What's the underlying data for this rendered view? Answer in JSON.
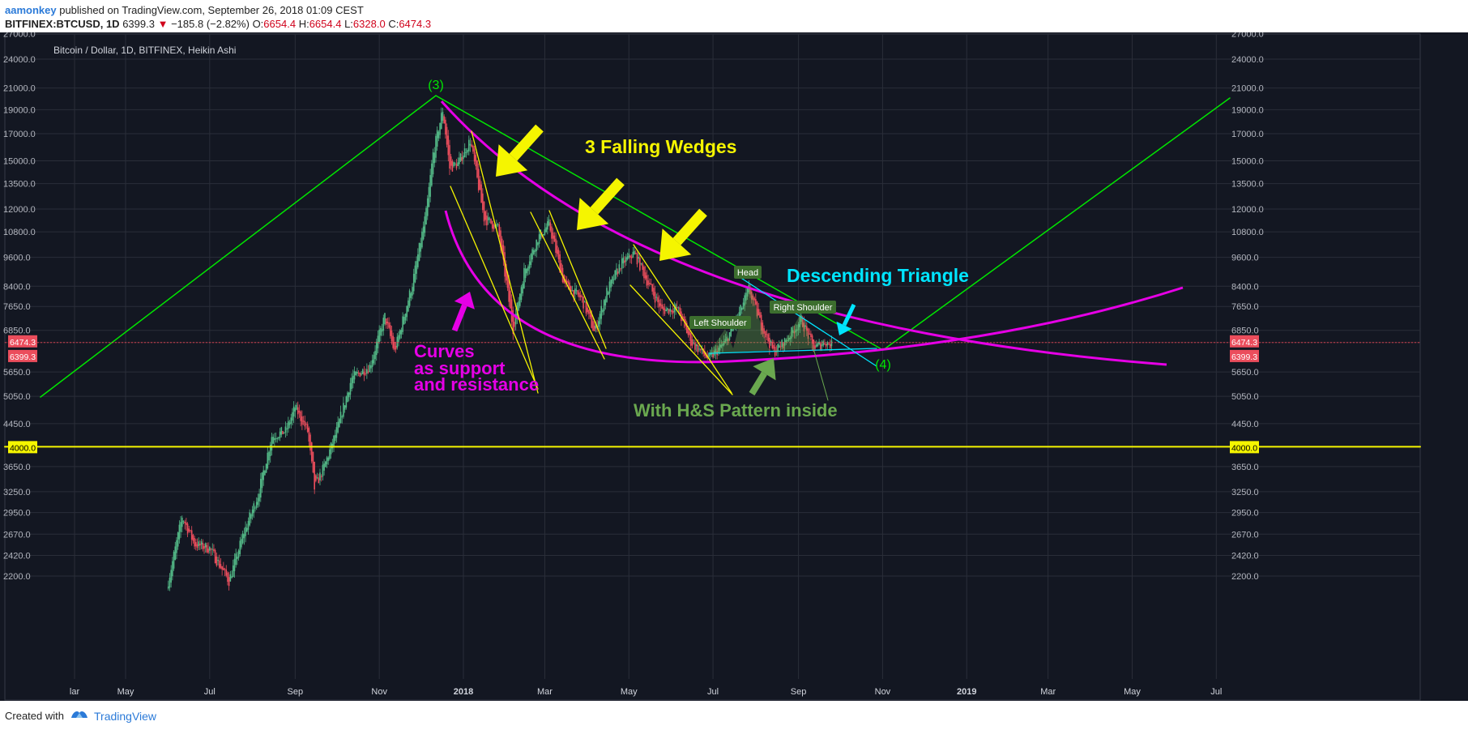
{
  "header": {
    "author": "aamonkey",
    "published_text": "published on TradingView.com, September 26, 2018 01:09 CEST",
    "symbol": "BITFINEX:BTCUSD, 1D",
    "price": "6399.3",
    "change": "−185.8 (−2.82%)",
    "o_label": "O:",
    "o_value": "6654.4",
    "h_label": "H:",
    "h_value": "6654.4",
    "l_label": "L:",
    "l_value": "6328.0",
    "c_label": "C:",
    "c_value": "6474.3"
  },
  "footer": {
    "created_with": "Created with",
    "brand": "TradingView"
  },
  "colors": {
    "background": "#131722",
    "grid": "#2a2e39",
    "up_candle": "#53b987",
    "down_candle": "#eb4d5c",
    "green_line": "#00e600",
    "magenta": "#e600e6",
    "yellow": "#f5f500",
    "cyan": "#00e5ff",
    "olive": "#6aa84f"
  },
  "chart_data": {
    "type": "candlestick",
    "title": "Bitcoin / Dollar, 1D, BITFINEX, Heikin Ashi",
    "y_scale": "log",
    "ylim": [
      2100,
      27500
    ],
    "y_ticks": [
      "27000.0",
      "24000.0",
      "21000.0",
      "19000.0",
      "17000.0",
      "15000.0",
      "13500.0",
      "12000.0",
      "10800.0",
      "9600.0",
      "8400.0",
      "7650.0",
      "6850.0",
      "5650.0",
      "5050.0",
      "4450.0",
      "3650.0",
      "3250.0",
      "2950.0",
      "2670.0",
      "2420.0",
      "2200.0"
    ],
    "x_range": [
      "2017-03-24",
      "2019-07-20"
    ],
    "x_ticks": [
      {
        "label": "lar",
        "date": "2017-03-25"
      },
      {
        "label": "May",
        "date": "2017-05-01"
      },
      {
        "label": "Jul",
        "date": "2017-07-01"
      },
      {
        "label": "Sep",
        "date": "2017-09-01"
      },
      {
        "label": "Nov",
        "date": "2017-11-01"
      },
      {
        "label": "2018",
        "date": "2018-01-01"
      },
      {
        "label": "Mar",
        "date": "2018-03-01"
      },
      {
        "label": "May",
        "date": "2018-05-01"
      },
      {
        "label": "Jul",
        "date": "2018-07-01"
      },
      {
        "label": "Sep",
        "date": "2018-09-01"
      },
      {
        "label": "Nov",
        "date": "2018-11-01"
      },
      {
        "label": "2019",
        "date": "2019-01-01"
      },
      {
        "label": "Mar",
        "date": "2019-03-01"
      },
      {
        "label": "May",
        "date": "2019-05-01"
      },
      {
        "label": "Jul",
        "date": "2019-07-01"
      }
    ],
    "price_path": [
      [
        "2017-06-01",
        2150
      ],
      [
        "2017-06-11",
        2900
      ],
      [
        "2017-06-20",
        2550
      ],
      [
        "2017-07-01",
        2500
      ],
      [
        "2017-07-15",
        2150
      ],
      [
        "2017-07-25",
        2650
      ],
      [
        "2017-08-05",
        3200
      ],
      [
        "2017-08-15",
        4200
      ],
      [
        "2017-08-25",
        4300
      ],
      [
        "2017-09-01",
        4800
      ],
      [
        "2017-09-10",
        4300
      ],
      [
        "2017-09-15",
        3300
      ],
      [
        "2017-09-22",
        3650
      ],
      [
        "2017-10-01",
        4300
      ],
      [
        "2017-10-12",
        5500
      ],
      [
        "2017-10-25",
        5800
      ],
      [
        "2017-11-05",
        7300
      ],
      [
        "2017-11-12",
        6200
      ],
      [
        "2017-11-25",
        8500
      ],
      [
        "2017-12-05",
        11800
      ],
      [
        "2017-12-10",
        15500
      ],
      [
        "2017-12-17",
        19000
      ],
      [
        "2017-12-22",
        14500
      ],
      [
        "2017-12-28",
        14800
      ],
      [
        "2018-01-06",
        16500
      ],
      [
        "2018-01-16",
        11500
      ],
      [
        "2018-01-26",
        11000
      ],
      [
        "2018-02-06",
        6900
      ],
      [
        "2018-02-14",
        9000
      ],
      [
        "2018-02-24",
        10500
      ],
      [
        "2018-03-04",
        11200
      ],
      [
        "2018-03-15",
        8500
      ],
      [
        "2018-03-28",
        7900
      ],
      [
        "2018-04-06",
        6800
      ],
      [
        "2018-04-15",
        8200
      ],
      [
        "2018-04-25",
        9300
      ],
      [
        "2018-05-05",
        9800
      ],
      [
        "2018-05-15",
        8500
      ],
      [
        "2018-05-25",
        7500
      ],
      [
        "2018-06-05",
        7600
      ],
      [
        "2018-06-15",
        6500
      ],
      [
        "2018-06-28",
        6000
      ],
      [
        "2018-07-10",
        6500
      ],
      [
        "2018-07-20",
        7400
      ],
      [
        "2018-07-27",
        8300
      ],
      [
        "2018-08-05",
        7000
      ],
      [
        "2018-08-14",
        6200
      ],
      [
        "2018-08-22",
        6500
      ],
      [
        "2018-09-03",
        7200
      ],
      [
        "2018-09-12",
        6300
      ],
      [
        "2018-09-20",
        6500
      ],
      [
        "2018-09-25",
        6399
      ]
    ],
    "annotations": [
      {
        "text": "(3)",
        "kind": "wave-label"
      },
      {
        "text": "(4)",
        "kind": "wave-label"
      },
      {
        "text": "3 Falling Wedges",
        "kind": "title-text"
      },
      {
        "text": "Descending Triangle",
        "kind": "title-text"
      },
      {
        "text": "Curves",
        "kind": "note"
      },
      {
        "text": "as support",
        "kind": "note"
      },
      {
        "text": "and resistance",
        "kind": "note"
      },
      {
        "text": "With H&S Pattern inside",
        "kind": "note"
      },
      {
        "text": "Head",
        "kind": "badge"
      },
      {
        "text": "Left Shoulder",
        "kind": "badge"
      },
      {
        "text": "Right Shoulder",
        "kind": "badge"
      }
    ],
    "price_labels": {
      "last_close": "6474.3",
      "last_price": "6399.3",
      "support_level": "4000.0"
    },
    "support_line": 4000,
    "grid": true
  }
}
